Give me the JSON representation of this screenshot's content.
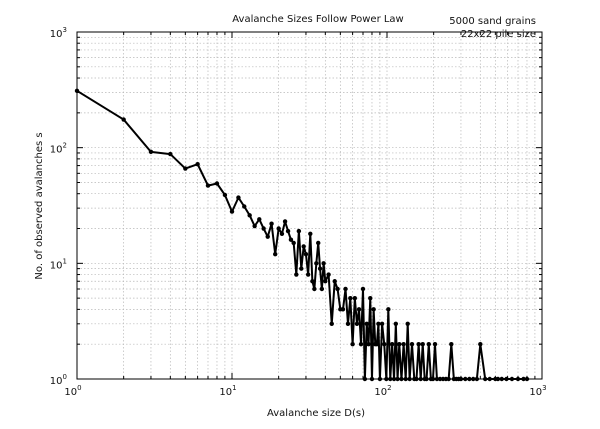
{
  "chart_data": {
    "type": "line",
    "title": "Avalanche Sizes Follow Power Law",
    "annotations": [
      "5000 sand grains",
      "22x22 pile size"
    ],
    "xlabel": "Avalanche size D(s)",
    "ylabel": "No. of observed avalanches s",
    "xscale": "log",
    "yscale": "log",
    "xlim": [
      1,
      1000
    ],
    "ylim": [
      1,
      1000
    ],
    "grid": true,
    "x_major_ticks": [
      {
        "base": "10",
        "exp": "0",
        "value": 1
      },
      {
        "base": "10",
        "exp": "1",
        "value": 10
      },
      {
        "base": "10",
        "exp": "2",
        "value": 100
      },
      {
        "base": "10",
        "exp": "3",
        "value": 1000
      }
    ],
    "y_major_ticks": [
      {
        "base": "10",
        "exp": "0",
        "value": 1
      },
      {
        "base": "10",
        "exp": "1",
        "value": 10
      },
      {
        "base": "10",
        "exp": "2",
        "value": 100
      },
      {
        "base": "10",
        "exp": "3",
        "value": 1000
      }
    ],
    "series": [
      {
        "x": [
          1,
          2,
          3,
          4,
          5,
          6,
          7,
          8,
          9,
          10,
          11,
          12,
          13,
          14,
          15,
          16,
          17,
          18,
          19,
          20,
          21,
          22,
          23,
          24,
          25,
          26,
          27,
          28,
          29,
          30,
          31,
          32,
          33,
          34,
          35,
          36,
          37,
          38,
          39,
          40,
          42,
          44,
          46,
          48,
          50,
          52,
          54,
          56,
          58,
          60,
          62,
          64,
          66,
          68,
          70,
          72,
          74,
          76,
          78,
          80,
          82,
          84,
          86,
          88,
          90,
          93,
          96,
          99,
          102,
          105,
          108,
          111,
          114,
          117,
          120,
          124,
          128,
          132,
          136,
          140,
          145,
          150,
          155,
          160,
          165,
          170,
          175,
          180,
          186,
          192,
          198,
          204,
          210,
          220,
          230,
          240,
          250,
          260,
          270,
          280,
          290,
          300,
          320,
          340,
          360,
          380,
          400,
          430,
          460,
          500,
          520,
          550,
          590,
          640,
          700,
          760,
          800
        ],
        "y": [
          310,
          175,
          92,
          88,
          66,
          72,
          47,
          49,
          39,
          28,
          37,
          31,
          26,
          21,
          24,
          20,
          17,
          22,
          12,
          20,
          18,
          23,
          19,
          16,
          15,
          8,
          19,
          9,
          14,
          12,
          8,
          18,
          7,
          6,
          10,
          15,
          9,
          6,
          10,
          7,
          8,
          3,
          7,
          6,
          4,
          4,
          6,
          3,
          5,
          2,
          5,
          3,
          4,
          2,
          6,
          1,
          3,
          2,
          5,
          1,
          4,
          2,
          2,
          3,
          1,
          3,
          2,
          1,
          4,
          1,
          2,
          1,
          3,
          1,
          2,
          1,
          2,
          1,
          3,
          1,
          2,
          1,
          1,
          2,
          1,
          2,
          1,
          1,
          2,
          1,
          1,
          2,
          1,
          1,
          1,
          1,
          1,
          2,
          1,
          1,
          1,
          1,
          1,
          1,
          1,
          1,
          2,
          1,
          1,
          1,
          1,
          1,
          1,
          1,
          1,
          1,
          1
        ]
      }
    ]
  }
}
